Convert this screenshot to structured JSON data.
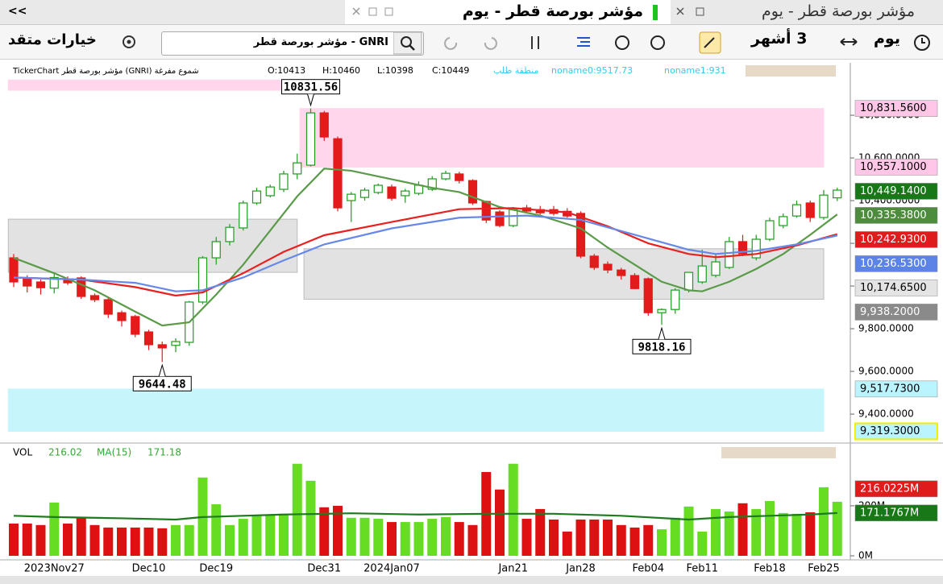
{
  "tabs": {
    "collapse": "<<",
    "active": "مؤشر بورصة قطر - يوم",
    "other": "مؤشر بورصة قطر - يوم"
  },
  "toolbar": {
    "advanced": "خيارات متقد",
    "symbol": "GNRI - مؤشر بورصة قطر",
    "period": "3 أشهر",
    "interval": "يوم"
  },
  "chart_data": {
    "type": "candlestick",
    "title": "TickerChart مؤشر بورصة قطر (GNRI) شموع مفرغة",
    "ohlc_label": [
      "O:10413",
      "H:10460",
      "L:10398",
      "C:10449"
    ],
    "legend": [
      "منطقة طلب",
      "noname0:9517.73",
      "noname1:931"
    ],
    "categories": [
      null,
      null,
      null,
      "2023Nov27",
      null,
      null,
      null,
      null,
      null,
      null,
      "Dec10",
      null,
      null,
      null,
      null,
      "Dec19",
      null,
      null,
      null,
      null,
      null,
      null,
      null,
      "Dec31",
      null,
      null,
      null,
      null,
      "2024Jan07",
      null,
      null,
      null,
      null,
      null,
      null,
      null,
      null,
      "Jan21",
      null,
      null,
      null,
      null,
      "Jan28",
      null,
      null,
      null,
      null,
      "Feb04",
      null,
      null,
      null,
      "Feb11",
      null,
      null,
      null,
      null,
      "Feb18",
      null,
      null,
      null,
      "Feb25",
      null
    ],
    "open": [
      10132,
      10038,
      10019,
      9990,
      10030,
      10038,
      9955,
      9936,
      9875,
      9857,
      9785,
      9725,
      9722,
      9736,
      9925,
      10132,
      10208,
      10272,
      10389,
      10423,
      10453,
      10525,
      10566,
      10811,
      10690,
      10400,
      10415,
      10438,
      10464,
      10423,
      10434,
      10453,
      10502,
      10525,
      10494,
      10396,
      10347,
      10283,
      10366,
      10358,
      10358,
      10350,
      10340,
      10140,
      10102,
      10075,
      10049,
      10034,
      9875,
      9890,
      9981,
      10019,
      10050,
      10087,
      10208,
      10132,
      10219,
      10283,
      10328,
      10389,
      10321,
      10413
    ],
    "high": [
      10150,
      10050,
      10030,
      10060,
      10045,
      10045,
      9965,
      9945,
      9885,
      9865,
      9795,
      9740,
      9755,
      9930,
      10140,
      10230,
      10290,
      10400,
      10460,
      10475,
      10540,
      10620,
      10831.56,
      10820,
      10700,
      10440,
      10460,
      10480,
      10475,
      10455,
      10490,
      10515,
      10540,
      10535,
      10500,
      10400,
      10355,
      10370,
      10380,
      10375,
      10375,
      10365,
      10350,
      10150,
      10115,
      10085,
      10060,
      10040,
      9895,
      9990,
      10060,
      10170,
      10150,
      10230,
      10240,
      10240,
      10320,
      10340,
      10400,
      10400,
      10450,
      10460
    ],
    "low": [
      9995,
      9970,
      9960,
      9965,
      10005,
      9940,
      9925,
      9850,
      9810,
      9760,
      9700,
      9644.48,
      9690,
      9720,
      9915,
      10100,
      10190,
      10260,
      10380,
      10415,
      10440,
      10500,
      10560,
      10680,
      10350,
      10300,
      10400,
      10430,
      10400,
      10390,
      10425,
      10445,
      10495,
      10480,
      10380,
      10295,
      10275,
      10275,
      10340,
      10335,
      10330,
      10320,
      10130,
      10075,
      10060,
      10030,
      9985,
      9860,
      9818.16,
      9870,
      9970,
      10010,
      10040,
      10080,
      10140,
      10120,
      10210,
      10270,
      10320,
      10300,
      10310,
      10398
    ],
    "close": [
      10019,
      10000,
      9992,
      10040,
      10015,
      9951,
      9936,
      9868,
      9838,
      9774,
      9725,
      9710,
      9740,
      9925,
      10132,
      10208,
      10275,
      10389,
      10445,
      10464,
      10525,
      10577,
      10811,
      10698,
      10366,
      10430,
      10449,
      10472,
      10411,
      10445,
      10472,
      10502,
      10528,
      10494,
      10389,
      10309,
      10283,
      10358,
      10351,
      10343,
      10340,
      10328,
      10140,
      10087,
      10075,
      10049,
      9988,
      9875,
      9890,
      9981,
      10064,
      10094,
      10113,
      10208,
      10151,
      10219,
      10306,
      10325,
      10381,
      10321,
      10426,
      10449.14
    ],
    "colors": {
      "up": "#1e9b1e",
      "down": "#e31b1b"
    },
    "lines": [
      {
        "color": "#5a9a48",
        "x": [
          0,
          3,
          6,
          9,
          11,
          13,
          15,
          17,
          19,
          21,
          23,
          25,
          28,
          31,
          33,
          36,
          39,
          42,
          44,
          46,
          48,
          50,
          51,
          53,
          55,
          57,
          59,
          61
        ],
        "values": [
          10132,
          10060,
          9980,
          9880,
          9815,
          9830,
          9960,
          10100,
          10260,
          10420,
          10550,
          10540,
          10500,
          10460,
          10440,
          10370,
          10330,
          10270,
          10180,
          10100,
          10020,
          9980,
          9975,
          10020,
          10080,
          10150,
          10240,
          10335.38
        ]
      },
      {
        "color": "#e82020",
        "x": [
          0,
          5,
          9,
          12,
          14,
          17,
          20,
          23,
          28,
          33,
          37,
          41,
          44,
          47,
          50,
          52,
          55,
          58,
          61
        ],
        "values": [
          10040,
          10030,
          9995,
          9955,
          9970,
          10060,
          10160,
          10238,
          10300,
          10360,
          10365,
          10345,
          10280,
          10200,
          10150,
          10135,
          10150,
          10190,
          10242.93
        ]
      },
      {
        "color": "#6688e8",
        "x": [
          0,
          5,
          9,
          12,
          14,
          17,
          20,
          23,
          28,
          33,
          38,
          42,
          46,
          50,
          52,
          55,
          58,
          61
        ],
        "values": [
          10040,
          10030,
          10015,
          9975,
          9980,
          10040,
          10120,
          10195,
          10270,
          10320,
          10330,
          10310,
          10240,
          10170,
          10150,
          10165,
          10195,
          10236.53
        ]
      }
    ],
    "zones": [
      {
        "color": "#ffd6ec",
        "from": 10917,
        "to": 10965,
        "x0": -0.4,
        "x1": 21
      },
      {
        "color": "#ffd6ec",
        "from": 10557.1,
        "to": 10831.56,
        "x0": 21.2,
        "x1": 60
      },
      {
        "color": "#e2e2e2",
        "from": 10064,
        "to": 10313,
        "x0": -0.4,
        "x1": 21
      },
      {
        "color": "#e2e2e2",
        "from": 9938.2,
        "to": 10174.65,
        "x0": 21.5,
        "x1": 60
      },
      {
        "color": "#c6f6fc",
        "from": 9319.3,
        "to": 9517.73,
        "x0": -0.4,
        "x1": 60
      }
    ],
    "annotations": [
      {
        "x": 22,
        "value": 10831.56,
        "label": "10831.56",
        "position": "above"
      },
      {
        "x": 11,
        "value": 9644.48,
        "label": "9644.48",
        "position": "below"
      },
      {
        "x": 48,
        "value": 9818.16,
        "label": "9818.16",
        "position": "below"
      }
    ],
    "ylim": [
      9272,
      10970
    ],
    "yticks": [
      {
        "value": 9400,
        "label": "9,400.0000"
      },
      {
        "value": 9600,
        "label": "9,600.0000"
      },
      {
        "value": 9800,
        "label": "9,800.0000"
      },
      {
        "value": 10000,
        "label": "10,000.0000"
      },
      {
        "value": 10200,
        "label": "10,200.0000"
      },
      {
        "value": 10400,
        "label": "10,400.0000"
      },
      {
        "value": 10600,
        "label": "10,600.0000"
      },
      {
        "value": 10800,
        "label": "10,800.0000"
      }
    ],
    "price_labels": [
      {
        "value": 10831.56,
        "label": "10,831.5600",
        "bg": "#ffc6e8",
        "fg": "#000000"
      },
      {
        "value": 10557.1,
        "label": "10,557.1000",
        "bg": "#ffc6e8",
        "fg": "#000000"
      },
      {
        "value": 10449.14,
        "label": "10,449.1400",
        "bg": "#187818",
        "fg": "#ffffff"
      },
      {
        "value": 10335.38,
        "label": "10,335.3800",
        "bg": "#4c8c3c",
        "fg": "#ffffff"
      },
      {
        "value": 10242.93,
        "label": "10,242.9300",
        "bg": "#e01b1b",
        "fg": "#ffffff"
      },
      {
        "value": 10236.53,
        "label": "10,236.5300",
        "bg": "#5b84e6",
        "fg": "#ffffff"
      },
      {
        "value": 10174.65,
        "label": "10,174.6500",
        "bg": "#e4e4e4",
        "fg": "#000000"
      },
      {
        "value": 9938.2,
        "label": "9,938.2000",
        "bg": "#8a8a8a",
        "fg": "#ffffff"
      },
      {
        "value": 9517.73,
        "label": "9,517.7300",
        "bg": "#baf4ff",
        "fg": "#000000"
      },
      {
        "value": 9319.3,
        "label": "9,319.3000",
        "bg": "#baf4ff",
        "fg": "#000000",
        "border": "#f0f000"
      }
    ],
    "volume": {
      "title": "VOL",
      "last": "216.02",
      "ma_name": "MA(15)",
      "ma_last": "171.18",
      "up_color": "#66dd22",
      "down_color": "#dd1111",
      "values": [
        129,
        129,
        123,
        213,
        129,
        155,
        123,
        113,
        113,
        113,
        113,
        110,
        123,
        123,
        313,
        206,
        123,
        148,
        161,
        161,
        168,
        368,
        300,
        194,
        200,
        152,
        152,
        148,
        135,
        135,
        135,
        148,
        155,
        135,
        123,
        335,
        265,
        368,
        148,
        187,
        145,
        97,
        145,
        145,
        145,
        123,
        113,
        123,
        106,
        152,
        197,
        97,
        187,
        177,
        210,
        187,
        219,
        171,
        168,
        174,
        274,
        216.0225
      ],
      "ylim": [
        0,
        380
      ],
      "yticks": [
        {
          "value": 0,
          "label": "0M"
        },
        {
          "value": 200,
          "label": "200M"
        }
      ],
      "ma": {
        "color": "#1e7a1e",
        "x": [
          0,
          3,
          8,
          12,
          14,
          20,
          25,
          30,
          35,
          40,
          45,
          50,
          53,
          56,
          59,
          61
        ],
        "values": [
          160,
          155,
          150,
          145,
          155,
          165,
          170,
          165,
          168,
          168,
          160,
          145,
          155,
          160,
          165,
          171.1767
        ]
      },
      "labels": [
        {
          "value": 216.0225,
          "label": "216.0225M",
          "bg": "#e01b1b",
          "fg": "#ffffff"
        },
        {
          "value": 171.1767,
          "label": "171.1767M",
          "bg": "#187818",
          "fg": "#ffffff"
        }
      ]
    }
  }
}
